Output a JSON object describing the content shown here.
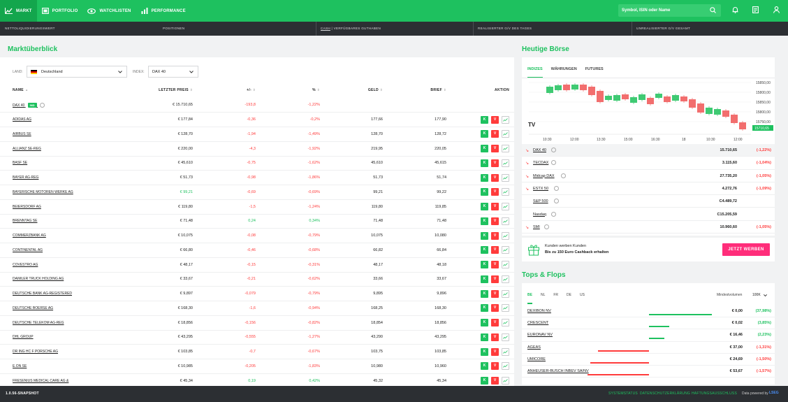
{
  "nav": {
    "items": [
      {
        "label": "MARKT",
        "icon": "chart-line-icon",
        "active": true
      },
      {
        "label": "PORTFOLIO",
        "icon": "portfolio-icon",
        "active": false
      },
      {
        "label": "WATCHLISTEN",
        "icon": "eye-icon",
        "active": false
      },
      {
        "label": "PERFORMANCE",
        "icon": "bar-chart-icon",
        "active": false
      }
    ],
    "search_placeholder": "Symbol, ISIN oder Name"
  },
  "account_bar": {
    "net_liquidation": "NETTOLIQUIDIERUNGSWERT",
    "positions": "POSITIONEN",
    "cash_label": "CASH",
    "cash_rest": " | VERFÜGBARES GUTHABEN",
    "realized_today": "REALISIERTER G/V DES TAGES",
    "unrealized_total": "UNREALISIERTER G/V GESAMT"
  },
  "market": {
    "title": "Marktüberblick",
    "country_label": "LAND:",
    "country_value": "Deutschland",
    "index_label": "INDEX:",
    "index_value": "DAX 40",
    "columns": [
      "NAME",
      "LETZTER PREIS",
      "+/-",
      "%",
      "GELD",
      "BRIEF",
      "AKTION"
    ],
    "index_row": {
      "name": "DAX 40",
      "badge": "IND",
      "price": "€ 15.710,65",
      "change": "-193,8",
      "pct": "-1,22%"
    },
    "rows": [
      {
        "name": "ADIDAS AG",
        "price": "€ 177,84",
        "change": "-0,36",
        "pct": "-0,2%",
        "bid": "177,66",
        "ask": "177,90",
        "dir": "neg",
        "price_pos": false
      },
      {
        "name": "AIRBUS SE",
        "price": "€ 128,70",
        "change": "-1,94",
        "pct": "-1,49%",
        "bid": "128,70",
        "ask": "128,72",
        "dir": "neg",
        "price_pos": false
      },
      {
        "name": "ALLIANZ SE-REG",
        "price": "€ 220,00",
        "change": "-4,3",
        "pct": "-1,92%",
        "bid": "219,95",
        "ask": "220,05",
        "dir": "neg",
        "price_pos": false
      },
      {
        "name": "BASF SE",
        "price": "€ 45,610",
        "change": "-0,75",
        "pct": "-1,62%",
        "bid": "45,610",
        "ask": "45,615",
        "dir": "neg",
        "price_pos": false
      },
      {
        "name": "BAYER AG-REG",
        "price": "€ 51,73",
        "change": "-0,98",
        "pct": "-1,86%",
        "bid": "51,73",
        "ask": "51,74",
        "dir": "neg",
        "price_pos": false
      },
      {
        "name": "BAYERISCHE MOTOREN WERKE AG",
        "price": "€ 99,21",
        "change": "-0,69",
        "pct": "-0,69%",
        "bid": "99,21",
        "ask": "99,22",
        "dir": "neg",
        "price_pos": true
      },
      {
        "name": "BEIERSDORF AG",
        "price": "€ 119,80",
        "change": "-1,5",
        "pct": "-1,24%",
        "bid": "119,80",
        "ask": "119,85",
        "dir": "neg",
        "price_pos": false
      },
      {
        "name": "BRENNTAG SE",
        "price": "€ 71,48",
        "change": "0,24",
        "pct": "0,34%",
        "bid": "71,48",
        "ask": "71,48",
        "dir": "pos",
        "price_pos": false
      },
      {
        "name": "COMMERZBANK AG",
        "price": "€ 10,075",
        "change": "-0,08",
        "pct": "-0,79%",
        "bid": "10,075",
        "ask": "10,080",
        "dir": "neg",
        "price_pos": false
      },
      {
        "name": "CONTINENTAL AG",
        "price": "€ 66,80",
        "change": "-0,46",
        "pct": "-0,68%",
        "bid": "66,82",
        "ask": "66,84",
        "dir": "neg",
        "price_pos": false
      },
      {
        "name": "COVESTRO AG",
        "price": "€ 48,17",
        "change": "-0,15",
        "pct": "-0,31%",
        "bid": "48,17",
        "ask": "48,18",
        "dir": "neg",
        "price_pos": false
      },
      {
        "name": "DAIMLER TRUCK HOLDING AG",
        "price": "€ 33,67",
        "change": "-0,21",
        "pct": "-0,62%",
        "bid": "33,66",
        "ask": "33,67",
        "dir": "neg",
        "price_pos": false
      },
      {
        "name": "DEUTSCHE BANK AG-REGISTERED",
        "price": "€ 9,897",
        "change": "-0,079",
        "pct": "-0,79%",
        "bid": "9,895",
        "ask": "9,896",
        "dir": "neg",
        "price_pos": false
      },
      {
        "name": "DEUTSCHE BOERSE AG",
        "price": "€ 168,30",
        "change": "-1,6",
        "pct": "-0,94%",
        "bid": "168,25",
        "ask": "168,30",
        "dir": "neg",
        "price_pos": false
      },
      {
        "name": "DEUTSCHE TELEKOM AG-REG",
        "price": "€ 18,856",
        "change": "-0,156",
        "pct": "-0,82%",
        "bid": "18,854",
        "ask": "18,856",
        "dir": "neg",
        "price_pos": false
      },
      {
        "name": "DHL GROUP",
        "price": "€ 43,295",
        "change": "-0,555",
        "pct": "-1,27%",
        "bid": "43,290",
        "ask": "43,295",
        "dir": "neg",
        "price_pos": false
      },
      {
        "name": "DR ING HC F PORSCHE AG",
        "price": "€ 103,85",
        "change": "-0,7",
        "pct": "-0,67%",
        "bid": "103,75",
        "ask": "103,85",
        "dir": "neg",
        "price_pos": false
      },
      {
        "name": "E.ON SE",
        "price": "€ 10,985",
        "change": "-0,205",
        "pct": "-1,83%",
        "bid": "10,980",
        "ask": "10,960",
        "dir": "neg",
        "price_pos": false
      },
      {
        "name": "FRESENIUS MEDICAL CARE AG &",
        "price": "€ 45,34",
        "change": "0,19",
        "pct": "0,42%",
        "bid": "45,32",
        "ask": "45,34",
        "dir": "pos",
        "price_pos": false
      }
    ]
  },
  "boerse": {
    "title": "Heutige Börse",
    "tabs": [
      "INDIZES",
      "WÄHRUNGEN",
      "FUTURES"
    ],
    "chart_ylabels": [
      "15850,00",
      "15800,00",
      "15850,00",
      "15800,00",
      "15750,00"
    ],
    "chart_last": "15710,65",
    "chart_xlabels": [
      "10:30",
      "12:00",
      "13:30",
      "15:00",
      "16:30",
      "18",
      "10:30",
      "12:00"
    ],
    "indices": [
      {
        "name": "DAX 40",
        "value": "15.710,65",
        "pct": "(-1,22%)",
        "arrow": true
      },
      {
        "name": "TECDAX",
        "value": "3.115,60",
        "pct": "(-1,04%)",
        "arrow": true
      },
      {
        "name": "Midcap DAX",
        "value": "27.735,20",
        "pct": "(-1,05%)",
        "arrow": true
      },
      {
        "name": "ESTX 50",
        "value": "4.272,76",
        "pct": "(-1,09%)",
        "arrow": true
      },
      {
        "name": "S&P 500",
        "value": "C4.489,72",
        "pct": "",
        "arrow": false
      },
      {
        "name": "Nasdaq",
        "value": "C15.205,59",
        "pct": "",
        "arrow": false
      },
      {
        "name": "SMI",
        "value": "10.960,60",
        "pct": "(-1,05%)",
        "arrow": true
      }
    ],
    "promo_line1": "Kunden werben Kunden",
    "promo_line2": "Bis zu 150 Euro Cashback erhalten",
    "promo_button": "JETZT WERBEN"
  },
  "tops": {
    "title": "Tops & Flops",
    "tabs": [
      "BE",
      "NL",
      "FR",
      "DE",
      "US"
    ],
    "volume_label": "Mindestvolumen",
    "volume_value": "100K",
    "rows": [
      {
        "name": "DEXIBON NV",
        "value": "€ 0,00",
        "pct": "(37,98%)",
        "dir": "pos",
        "bar": 37.98
      },
      {
        "name": "CRESCENT",
        "value": "€ 0,02",
        "pct": "(3,85%)",
        "dir": "pos",
        "bar": 3.85
      },
      {
        "name": "EURONAV NV",
        "value": "€ 16,46",
        "pct": "(2,23%)",
        "dir": "pos",
        "bar": 2.23
      },
      {
        "name": "AGEAS",
        "value": "€ 37,00",
        "pct": "(-1,31%)",
        "dir": "neg",
        "bar": 1.31
      },
      {
        "name": "UMICORE",
        "value": "€ 24,69",
        "pct": "(-1,50%)",
        "dir": "neg",
        "bar": 1.5
      },
      {
        "name": "ANHEUSER-BUSCH INBEV SA/NV",
        "value": "€ 53,67",
        "pct": "(-1,57%)",
        "dir": "neg",
        "bar": 1.57
      }
    ]
  },
  "footer": {
    "version": "1.0.56-SNAPSHOT",
    "links": [
      "SYSTEMSTATUS",
      "DATENSCHUTZERKLÄRUNG",
      "HAFTUNGSAUSSCHLUSS"
    ],
    "powered": "Data powered by",
    "brand": "LSEG"
  },
  "colors": {
    "accent": "#1ec15f",
    "negative": "#ff3b3b",
    "dark": "#2c2f33"
  }
}
